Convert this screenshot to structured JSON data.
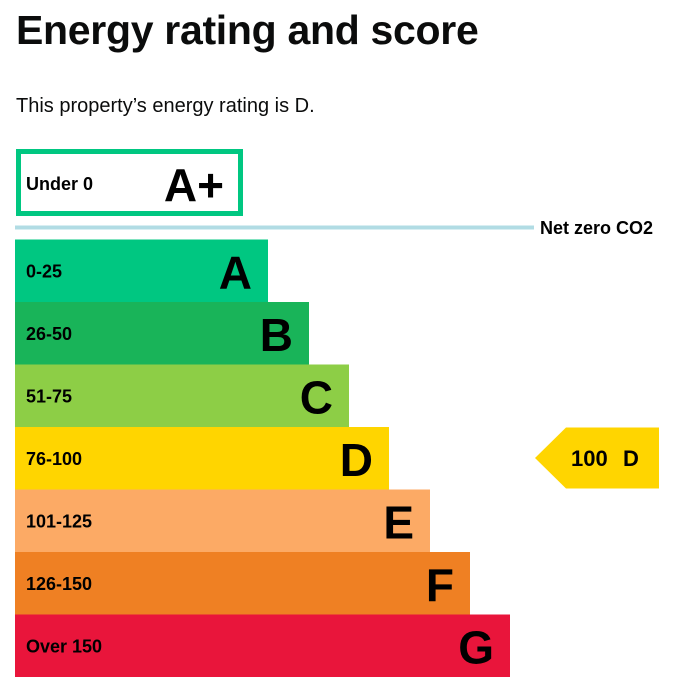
{
  "page": {
    "title": "Energy rating and score",
    "summary": "This property’s energy rating is D."
  },
  "chart_data": {
    "type": "bar",
    "title": "",
    "xlabel": "",
    "ylabel": "",
    "bands": [
      {
        "letter": "A+",
        "range": "Under 0",
        "color": "#ffffff",
        "border": "#00c781",
        "level": 0.39
      },
      {
        "letter": "A",
        "range": "0-25",
        "color": "#00c781",
        "level": 0.44
      },
      {
        "letter": "B",
        "range": "26-50",
        "color": "#19b459",
        "level": 0.51
      },
      {
        "letter": "C",
        "range": "51-75",
        "color": "#8dce46",
        "level": 0.58
      },
      {
        "letter": "D",
        "range": "76-100",
        "color": "#ffd500",
        "level": 0.65
      },
      {
        "letter": "E",
        "range": "101-125",
        "color": "#fcaa65",
        "level": 0.72
      },
      {
        "letter": "F",
        "range": "126-150",
        "color": "#ef8023",
        "level": 0.79
      },
      {
        "letter": "G",
        "range": "Over 150",
        "color": "#e9153b",
        "level": 0.86
      }
    ],
    "net_zero": {
      "label": "Net zero CO2",
      "line_color": "#b1dce4"
    },
    "current_rating": {
      "score": "100",
      "letter": "D",
      "color": "#ffd500"
    }
  }
}
